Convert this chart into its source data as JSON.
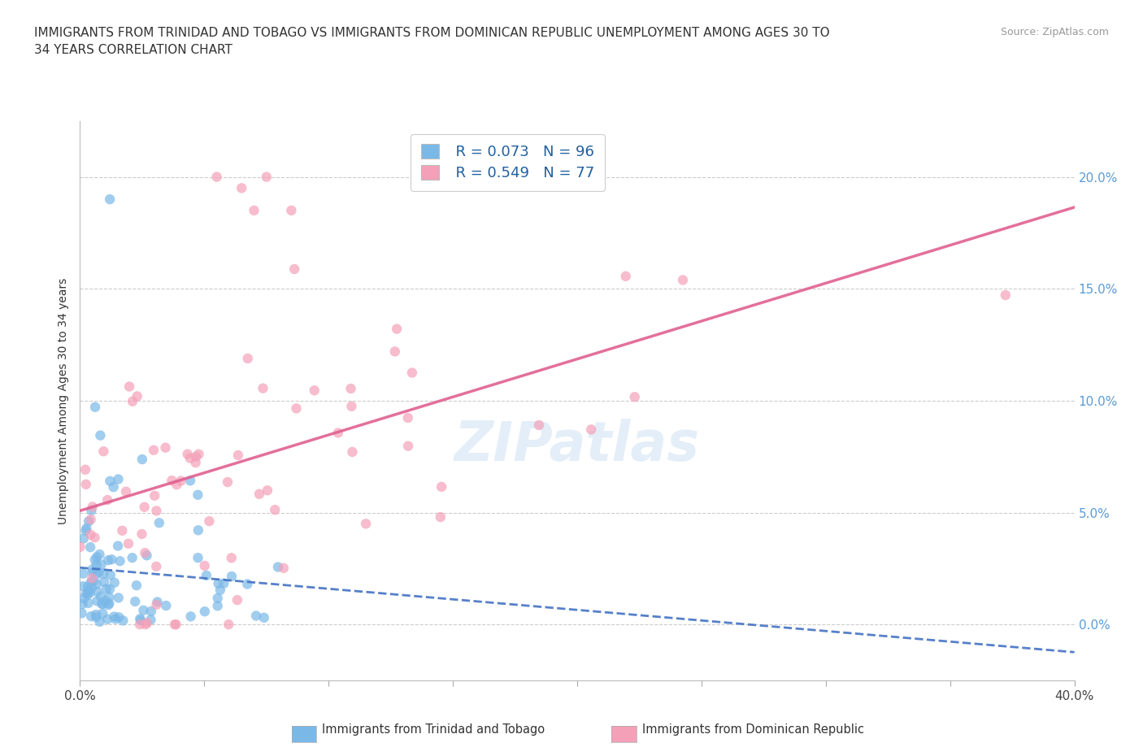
{
  "title": "IMMIGRANTS FROM TRINIDAD AND TOBAGO VS IMMIGRANTS FROM DOMINICAN REPUBLIC UNEMPLOYMENT AMONG AGES 30 TO\n34 YEARS CORRELATION CHART",
  "source": "Source: ZipAtlas.com",
  "ylabel": "Unemployment Among Ages 30 to 34 years",
  "color_blue": "#7ab8e8",
  "color_pink": "#f4a0b8",
  "color_blue_line": "#4472c4",
  "color_pink_line": "#e06090",
  "legend_R1": "R = 0.073",
  "legend_N1": "N = 96",
  "legend_R2": "R = 0.549",
  "legend_N2": "N = 77",
  "watermark": "ZIPatlas",
  "legend_label1": "Immigrants from Trinidad and Tobago",
  "legend_label2": "Immigrants from Dominican Republic",
  "xlim": [
    0.0,
    0.4
  ],
  "ylim": [
    -0.025,
    0.225
  ],
  "y_ticks": [
    0.0,
    0.05,
    0.1,
    0.15,
    0.2
  ],
  "x_ticks": [
    0.0,
    0.05,
    0.1,
    0.15,
    0.2,
    0.25,
    0.3,
    0.35,
    0.4
  ]
}
